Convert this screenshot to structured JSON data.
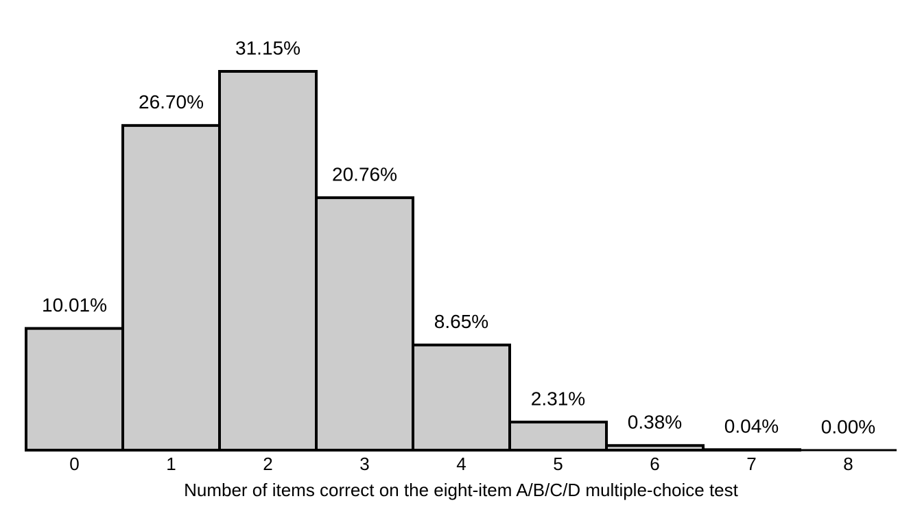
{
  "chart_data": {
    "type": "bar",
    "x_label": "Number of items correct on the eight-item A/B/C/D multiple-choice test",
    "categories": [
      "0",
      "1",
      "2",
      "3",
      "4",
      "5",
      "6",
      "7",
      "8"
    ],
    "values": [
      10.01,
      26.7,
      31.15,
      20.76,
      8.65,
      2.31,
      0.38,
      0.04,
      0.0
    ],
    "value_labels": [
      "10.01%",
      "26.70%",
      "31.15%",
      "20.76%",
      "8.65%",
      "2.31%",
      "0.38%",
      "0.04%",
      "0.00%"
    ],
    "color": "#cccccc"
  }
}
